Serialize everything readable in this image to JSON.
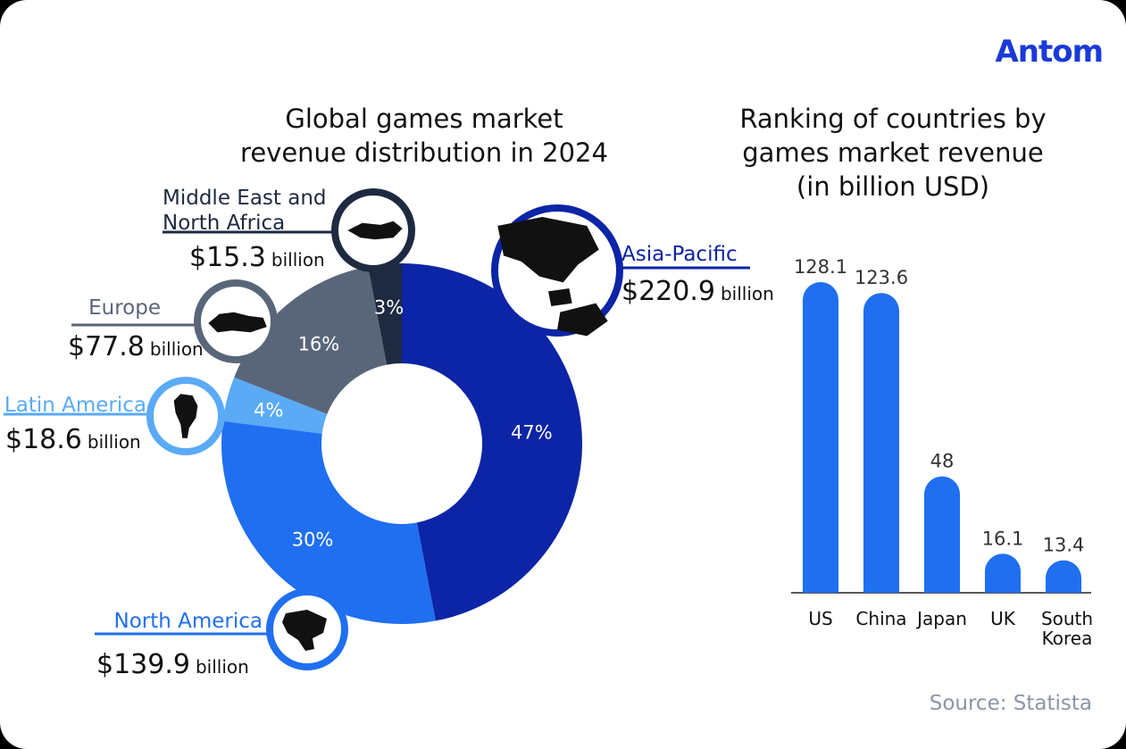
{
  "brand": {
    "logo_text": "Antom"
  },
  "source_text": "Source: Statista",
  "colors": {
    "asia_pacific": "#0c24a6",
    "north_america": "#1f6ff0",
    "latin_america": "#5aaaf5",
    "europe": "#59667a",
    "mena": "#1e2a40",
    "bar": "#1f6ff0"
  },
  "chart_data": [
    {
      "type": "pie",
      "title": "Global games market revenue distribution in 2024",
      "title_lines": [
        "Global games market",
        "revenue distribution in 2024"
      ],
      "slices": [
        {
          "name": "Asia-Pacific",
          "percent": 47,
          "percent_label": "47%",
          "value": 220.9,
          "value_label": "$220.9",
          "unit": "billion",
          "color": "#0c24a6",
          "icon": "asia-pacific-map-icon"
        },
        {
          "name": "North America",
          "percent": 30,
          "percent_label": "30%",
          "value": 139.9,
          "value_label": "$139.9",
          "unit": "billion",
          "color": "#1f6ff0",
          "icon": "north-america-map-icon"
        },
        {
          "name": "Latin America",
          "percent": 4,
          "percent_label": "4%",
          "value": 18.6,
          "value_label": "$18.6",
          "unit": "billion",
          "color": "#5aaaf5",
          "icon": "latin-america-map-icon"
        },
        {
          "name": "Europe",
          "percent": 16,
          "percent_label": "16%",
          "value": 77.8,
          "value_label": "$77.8",
          "unit": "billion",
          "color": "#59667a",
          "icon": "europe-map-icon"
        },
        {
          "name": "Middle East and North Africa",
          "name_lines": [
            "Middle East and",
            "North Africa"
          ],
          "percent": 3,
          "percent_label": "3%",
          "value": 15.3,
          "value_label": "$15.3",
          "unit": "billion",
          "color": "#1e2a40",
          "icon": "mena-map-icon"
        }
      ]
    },
    {
      "type": "bar",
      "title": "Ranking of countries by games market revenue (in billion USD)",
      "title_lines": [
        "Ranking of countries by",
        "games market revenue",
        "(in billion USD)"
      ],
      "categories": [
        "US",
        "China",
        "Japan",
        "UK",
        "South Korea"
      ],
      "category_lines": [
        [
          "US"
        ],
        [
          "China"
        ],
        [
          "Japan"
        ],
        [
          "UK"
        ],
        [
          "South",
          "Korea"
        ]
      ],
      "values": [
        128.1,
        123.6,
        48,
        16.1,
        13.4
      ],
      "value_labels": [
        "128.1",
        "123.6",
        "48",
        "16.1",
        "13.4"
      ],
      "ylim": [
        0,
        128.1
      ]
    }
  ]
}
